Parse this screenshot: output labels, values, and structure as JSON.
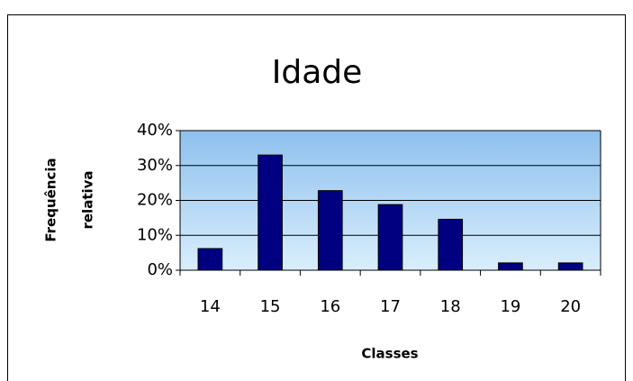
{
  "chart_data": {
    "type": "bar",
    "title": "Idade",
    "y_label": [
      "Frequência",
      "relativa"
    ],
    "x_label": "Classes",
    "categories": [
      "14",
      "15",
      "16",
      "17",
      "18",
      "19",
      "20"
    ],
    "values": [
      6.2,
      33,
      22.8,
      18.8,
      14.6,
      2.1,
      2.1
    ],
    "color": "#000080",
    "ylim": [
      0,
      40
    ],
    "yticks": [
      {
        "value": 0,
        "label": "0%"
      },
      {
        "value": 10,
        "label": "10%"
      },
      {
        "value": 20,
        "label": "20%"
      },
      {
        "value": 30,
        "label": "30%"
      },
      {
        "value": 40,
        "label": "40%"
      }
    ],
    "grid": true
  }
}
